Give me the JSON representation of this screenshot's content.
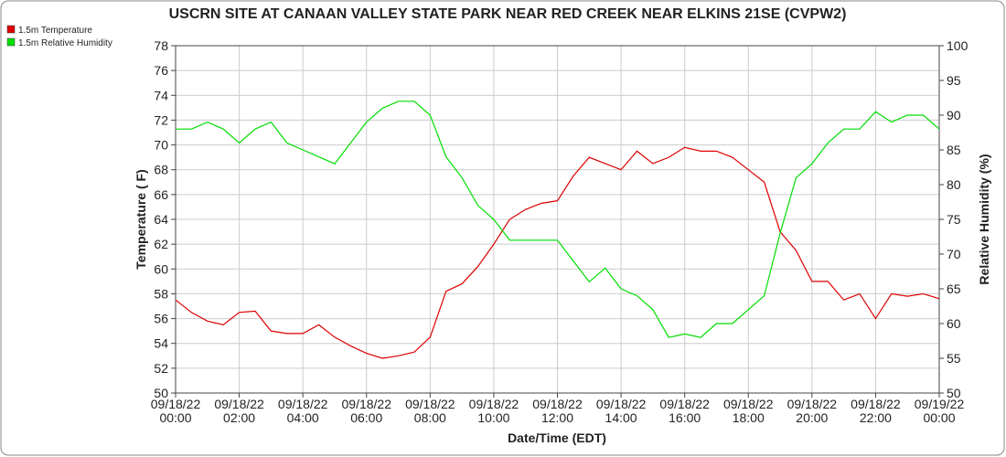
{
  "chart_data": {
    "type": "line",
    "title": "USCRN SITE AT CANAAN VALLEY STATE PARK NEAR RED CREEK NEAR ELKINS 21SE (CVPW2)",
    "xlabel": "Date/Time (EDT)",
    "ylabel": "Temperature ( F)",
    "y2label": "Relative Humidity (%)",
    "x": [
      0,
      0.5,
      1,
      1.5,
      2,
      2.5,
      3,
      3.5,
      4,
      4.5,
      5,
      5.5,
      6,
      6.5,
      7,
      7.5,
      8,
      8.5,
      9,
      9.5,
      10,
      10.5,
      11,
      11.5,
      12,
      12.5,
      13,
      13.5,
      14,
      14.5,
      15,
      15.5,
      16,
      16.5,
      17,
      17.5,
      18,
      18.5,
      19,
      19.5,
      20,
      20.5,
      21,
      21.5,
      22,
      22.5,
      23,
      23.5,
      24
    ],
    "series": [
      {
        "name": "1.5m Temperature",
        "color": "#dd0000",
        "axis": "y",
        "values": [
          57.5,
          56.5,
          55.8,
          55.5,
          56.5,
          56.6,
          55.0,
          54.8,
          54.8,
          55.5,
          54.5,
          53.8,
          53.2,
          52.8,
          53.0,
          53.3,
          54.5,
          58.2,
          58.8,
          60.2,
          62.0,
          64.0,
          64.8,
          65.3,
          65.5,
          67.5,
          69.0,
          68.5,
          68.0,
          69.5,
          68.5,
          69.0,
          69.8,
          69.5,
          69.5,
          69.0,
          68.0,
          67.0,
          63.0,
          61.5,
          59.0,
          59.0,
          57.5,
          58.0,
          56.0,
          58.0,
          57.8,
          58.0,
          57.6
        ]
      },
      {
        "name": "1.5m Relative Humidity",
        "color": "#00dd00",
        "axis": "y2",
        "values": [
          88,
          88,
          89,
          88,
          86,
          88,
          89,
          86,
          85,
          84,
          83,
          86,
          89,
          91,
          92,
          92,
          90,
          84,
          81,
          77,
          75,
          72,
          72,
          72,
          72,
          69,
          66,
          68,
          65,
          64,
          62,
          58,
          58.5,
          58,
          60,
          60,
          62,
          64,
          73,
          81,
          83,
          86,
          88,
          88,
          90.5,
          89,
          90,
          90,
          88
        ]
      }
    ],
    "xlim": [
      0,
      24
    ],
    "xticks": [
      {
        "value": 0,
        "label": "09/18/22\n00:00"
      },
      {
        "value": 2,
        "label": "09/18/22\n02:00"
      },
      {
        "value": 4,
        "label": "09/18/22\n04:00"
      },
      {
        "value": 6,
        "label": "09/18/22\n06:00"
      },
      {
        "value": 8,
        "label": "09/18/22\n08:00"
      },
      {
        "value": 10,
        "label": "09/18/22\n10:00"
      },
      {
        "value": 12,
        "label": "09/18/22\n12:00"
      },
      {
        "value": 14,
        "label": "09/18/22\n14:00"
      },
      {
        "value": 16,
        "label": "09/18/22\n16:00"
      },
      {
        "value": 18,
        "label": "09/18/22\n18:00"
      },
      {
        "value": 20,
        "label": "09/18/22\n20:00"
      },
      {
        "value": 22,
        "label": "09/18/22\n22:00"
      },
      {
        "value": 24,
        "label": "09/19/22\n00:00"
      }
    ],
    "ylim": [
      50,
      78
    ],
    "yticks": [
      50,
      52,
      54,
      56,
      58,
      60,
      62,
      64,
      66,
      68,
      70,
      72,
      74,
      76,
      78
    ],
    "y2lim": [
      50,
      100
    ],
    "y2ticks": [
      50,
      55,
      60,
      65,
      70,
      75,
      80,
      85,
      90,
      95,
      100
    ],
    "grid": true,
    "legend": "top-left"
  }
}
